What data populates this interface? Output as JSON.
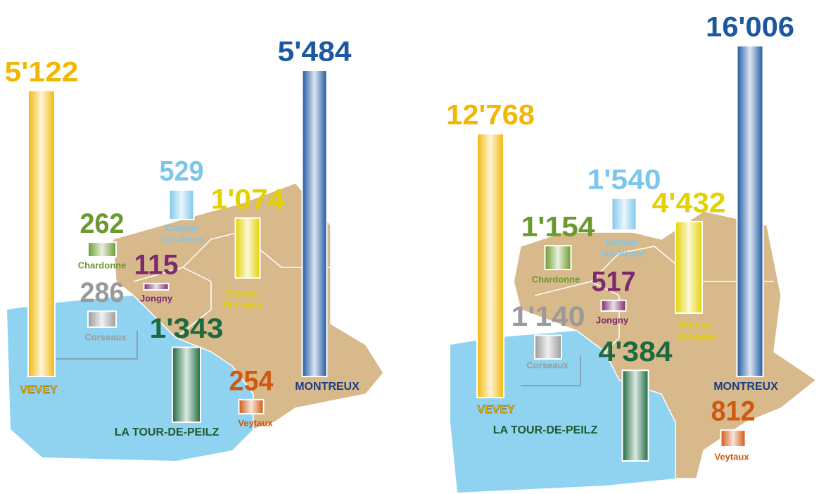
{
  "maps": [
    {
      "items": [
        {
          "name": [
            "VEVEY"
          ],
          "value": 5122,
          "value_label": "5'122",
          "color": "#f2b705"
        },
        {
          "name": [
            "MONTREUX"
          ],
          "value": 5484,
          "value_label": "5'484",
          "color": "#1b58a0"
        },
        {
          "name": [
            "Chardonne"
          ],
          "value": 262,
          "value_label": "262",
          "color": "#6a9a2e"
        },
        {
          "name": [
            "Corsier-",
            "sur-Vevey"
          ],
          "value": 529,
          "value_label": "529",
          "color": "#7cc6ea"
        },
        {
          "name": [
            "Jongny"
          ],
          "value": 115,
          "value_label": "115",
          "color": "#7b2a6b"
        },
        {
          "name": [
            "Blonay-",
            "St-Légier"
          ],
          "value": 1074,
          "value_label": "1'074",
          "color": "#e3d200"
        },
        {
          "name": [
            "Corseaux"
          ],
          "value": 286,
          "value_label": "286",
          "color": "#9a9a9a"
        },
        {
          "name": [
            "LA TOUR-DE-PEILZ"
          ],
          "value": 1343,
          "value_label": "1'343",
          "color": "#1e6a40"
        },
        {
          "name": [
            "Veytaux"
          ],
          "value": 254,
          "value_label": "254",
          "color": "#d0580f"
        }
      ]
    },
    {
      "items": [
        {
          "name": [
            "VEVEY"
          ],
          "value": 12768,
          "value_label": "12'768",
          "color": "#f2b705"
        },
        {
          "name": [
            "MONTREUX"
          ],
          "value": 16006,
          "value_label": "16'006",
          "color": "#1b58a0"
        },
        {
          "name": [
            "Chardonne"
          ],
          "value": 1154,
          "value_label": "1'154",
          "color": "#6a9a2e"
        },
        {
          "name": [
            "Corsier-",
            "sur-Vevey"
          ],
          "value": 1540,
          "value_label": "1'540",
          "color": "#7cc6ea"
        },
        {
          "name": [
            "Jongny"
          ],
          "value": 517,
          "value_label": "517",
          "color": "#7b2a6b"
        },
        {
          "name": [
            "Blonay-",
            "St-Légier"
          ],
          "value": 4432,
          "value_label": "4'432",
          "color": "#e3d200"
        },
        {
          "name": [
            "Corseaux"
          ],
          "value": 1140,
          "value_label": "1'140",
          "color": "#9a9a9a"
        },
        {
          "name": [
            "LA TOUR-DE-PEILZ"
          ],
          "value": 4384,
          "value_label": "4'384",
          "color": "#1e6a40"
        },
        {
          "name": [
            "Veytaux"
          ],
          "value": 812,
          "value_label": "812",
          "color": "#d0580f"
        }
      ]
    }
  ]
}
